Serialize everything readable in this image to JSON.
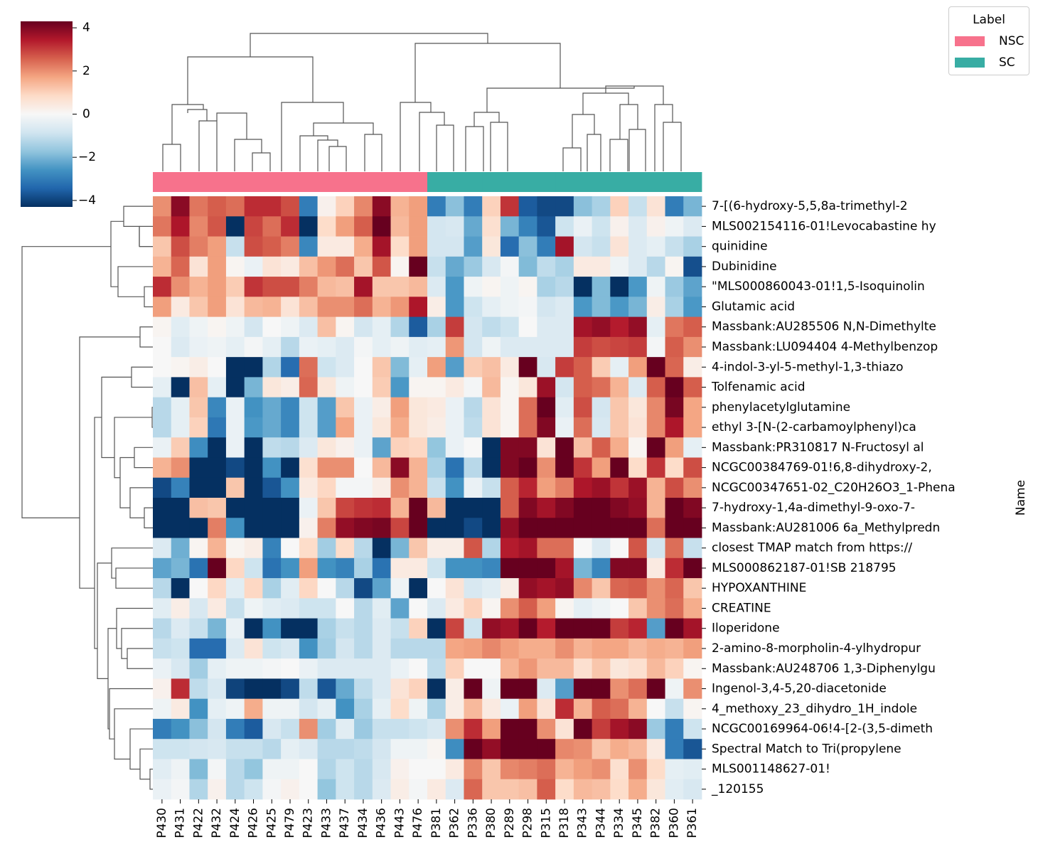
{
  "chart_data": {
    "type": "heatmap",
    "title": "",
    "xlabel": "",
    "ylabel": "Name",
    "colormap": "RdBu_r",
    "vlim": [
      -4.3,
      4.3
    ],
    "colorbar": {
      "ticks": [
        4,
        2,
        0,
        -2,
        -4
      ],
      "tick_labels": [
        "4",
        "2",
        "0",
        "−2",
        "−4"
      ]
    },
    "legend": {
      "title": "Label",
      "placement": "top-right",
      "items": [
        {
          "label": "NSC",
          "color": "#f7728c"
        },
        {
          "label": "SC",
          "color": "#38ada4"
        }
      ]
    },
    "columns": [
      "P430",
      "P431",
      "P422",
      "P432",
      "P424",
      "P426",
      "P425",
      "P479",
      "P423",
      "P433",
      "P437",
      "P434",
      "P436",
      "P443",
      "P476",
      "P381",
      "P362",
      "P336",
      "P380",
      "P289",
      "P298",
      "P315",
      "P318",
      "P343",
      "P344",
      "P334",
      "P345",
      "P382",
      "P360",
      "P361"
    ],
    "column_groups": [
      "NSC",
      "NSC",
      "NSC",
      "NSC",
      "NSC",
      "NSC",
      "NSC",
      "NSC",
      "NSC",
      "NSC",
      "NSC",
      "NSC",
      "NSC",
      "NSC",
      "NSC",
      "SC",
      "SC",
      "SC",
      "SC",
      "SC",
      "SC",
      "SC",
      "SC",
      "SC",
      "SC",
      "SC",
      "SC",
      "SC",
      "SC",
      "SC"
    ],
    "rows": [
      "7-[(6-hydroxy-5,5,8a-trimethyl-2",
      "MLS002154116-01!Levocabastine hy",
      "quinidine",
      "Dubinidine",
      "\"MLS000860043-01!1,5-Isoquinolin",
      "Glutamic acid",
      "Massbank:AU285506 N,N-Dimethylte",
      "Massbank:LU094404 4-Methylbenzop",
      "4-indol-3-yl-5-methyl-1,3-thiazo",
      "Tolfenamic acid",
      "phenylacetylglutamine",
      "ethyl 3-[N-(2-carbamoylphenyl)ca",
      "Massbank:PR310817 N-Fructosyl al",
      "NCGC00384769-01!6,8-dihydroxy-2,",
      "NCGC00347651-02_C20H26O3_1-Phena",
      "7-hydroxy-1,4a-dimethyl-9-oxo-7-",
      "Massbank:AU281006 6a_Methylpredn",
      "closest TMAP match from https://",
      "MLS000862187-01!SB 218795",
      "HYPOXANTHINE",
      "CREATINE",
      "Iloperidone",
      "2-amino-8-morpholin-4-ylhydropur",
      "Massbank:AU248706 1,3-Diphenylgu",
      "Ingenol-3,4-5,20-diacetonide",
      "4_methoxy_23_dihydro_1H_indole",
      "NCGC00169964-06!4-[2-(3,5-dimeth",
      "Spectral Match to Tri(propylene",
      "MLS001148627-01!",
      "_120155"
    ],
    "values": [
      [
        2.0,
        3.9,
        2.3,
        2.6,
        2.4,
        3.2,
        3.2,
        2.8,
        -3.0,
        0.2,
        1.0,
        2.1,
        3.9,
        1.5,
        1.8,
        -3.0,
        -1.8,
        -3.0,
        1.0,
        3.1,
        -3.6,
        -3.9,
        -3.9,
        -1.8,
        -1.4,
        1.0,
        -1.0,
        0.6,
        -3.0,
        -2.0
      ],
      [
        2.3,
        3.5,
        2.1,
        2.7,
        -4.3,
        2.9,
        2.4,
        3.2,
        -4.3,
        0.8,
        1.8,
        2.6,
        4.3,
        1.4,
        1.8,
        -0.8,
        -0.7,
        -2.2,
        0.7,
        -2.0,
        -2.9,
        -3.7,
        -0.9,
        -0.3,
        -0.9,
        0.2,
        -0.6,
        0.2,
        -0.2,
        -0.6
      ],
      [
        1.2,
        2.8,
        2.2,
        1.8,
        -1.0,
        2.8,
        2.6,
        2.2,
        -2.8,
        0.4,
        0.4,
        1.6,
        3.6,
        0.8,
        1.8,
        -0.8,
        -0.8,
        -2.4,
        0.5,
        -3.3,
        -1.8,
        -3.0,
        3.6,
        -0.8,
        -1.0,
        0.6,
        -0.6,
        -0.4,
        -1.0,
        -1.4
      ],
      [
        1.5,
        2.5,
        0.6,
        1.8,
        0.1,
        -0.3,
        0.6,
        0.4,
        1.3,
        1.9,
        2.4,
        1.2,
        2.7,
        0.1,
        4.3,
        -1.0,
        -2.2,
        -1.6,
        -0.7,
        -0.1,
        -1.9,
        -1.1,
        -1.4,
        0.4,
        0.4,
        -0.2,
        -0.6,
        -1.2,
        0.1,
        -3.8
      ],
      [
        3.2,
        2.0,
        1.5,
        1.8,
        1.1,
        3.1,
        2.8,
        2.8,
        2.2,
        1.4,
        1.3,
        3.6,
        1.2,
        1.2,
        1.4,
        -0.6,
        -2.5,
        -0.2,
        0.1,
        -0.2,
        0.1,
        -1.4,
        -1.2,
        -4.3,
        -1.9,
        -4.3,
        -2.5,
        -0.2,
        -1.6,
        -2.3
      ],
      [
        1.8,
        0.4,
        1.2,
        1.8,
        0.6,
        1.4,
        1.5,
        0.6,
        1.3,
        2.0,
        2.0,
        2.4,
        1.5,
        1.9,
        3.5,
        0.3,
        -2.5,
        -0.9,
        -0.4,
        -0.2,
        -0.1,
        -0.8,
        -0.6,
        -2.5,
        -1.9,
        -2.5,
        -2.0,
        0.3,
        -1.4,
        -2.5
      ],
      [
        0.1,
        -0.5,
        -0.2,
        0.1,
        -0.2,
        -0.8,
        0.0,
        -0.2,
        -0.6,
        1.3,
        0.1,
        -0.8,
        -0.4,
        -1.3,
        -3.6,
        -1.4,
        3.0,
        -0.8,
        -1.1,
        -0.9,
        0.0,
        -0.6,
        -0.6,
        3.6,
        3.8,
        3.4,
        3.8,
        -0.4,
        2.3,
        2.6
      ],
      [
        0.0,
        -0.6,
        -0.3,
        -0.2,
        -0.4,
        -0.1,
        -0.4,
        -1.2,
        -0.3,
        -0.4,
        -0.6,
        -0.1,
        -0.4,
        -0.2,
        -0.5,
        -0.4,
        1.9,
        -0.8,
        -0.2,
        -0.6,
        -0.6,
        -0.6,
        -0.6,
        3.0,
        2.8,
        2.9,
        3.0,
        -0.1,
        2.6,
        2.0
      ],
      [
        0.0,
        0.1,
        0.3,
        0.0,
        -4.3,
        -4.3,
        -1.3,
        -3.3,
        2.4,
        -0.9,
        -0.6,
        0.0,
        1.2,
        -1.9,
        -0.4,
        1.8,
        -2.4,
        1.1,
        1.3,
        0.4,
        4.3,
        -0.7,
        3.0,
        2.6,
        1.1,
        -0.4,
        1.8,
        4.3,
        2.5,
        0.3
      ],
      [
        -0.4,
        -4.3,
        1.3,
        -0.4,
        -4.3,
        -2.0,
        0.5,
        0.3,
        2.5,
        0.5,
        -0.2,
        0.0,
        1.1,
        -2.5,
        0.1,
        0.1,
        0.4,
        -0.1,
        1.4,
        0.1,
        0.5,
        3.7,
        -0.8,
        2.6,
        2.4,
        1.5,
        -0.6,
        2.6,
        4.3,
        2.6
      ],
      [
        -1.2,
        -0.4,
        1.2,
        -2.8,
        -0.3,
        -2.6,
        -2.2,
        -2.8,
        -0.9,
        -2.4,
        1.2,
        -0.3,
        0.3,
        1.8,
        0.5,
        0.4,
        -0.3,
        -1.2,
        0.6,
        0.1,
        2.4,
        4.3,
        -0.5,
        2.8,
        -0.8,
        1.2,
        0.5,
        2.1,
        4.1,
        1.7
      ],
      [
        -1.2,
        -0.4,
        1.0,
        -3.1,
        -0.3,
        -2.5,
        -2.2,
        -2.8,
        -0.9,
        -2.4,
        1.7,
        -0.3,
        0.5,
        1.6,
        0.5,
        0.3,
        -0.3,
        -1.1,
        0.6,
        0.1,
        2.4,
        4.0,
        -0.3,
        2.4,
        -0.7,
        1.2,
        0.6,
        2.1,
        3.5,
        1.7
      ],
      [
        -0.3,
        1.1,
        -2.7,
        -4.3,
        -0.3,
        -4.3,
        -1.1,
        -1.2,
        -0.6,
        0.5,
        0.2,
        -0.3,
        -2.3,
        1.0,
        0.9,
        -1.7,
        -0.3,
        0.0,
        -4.3,
        4.0,
        4.0,
        0.6,
        4.3,
        1.3,
        2.6,
        1.6,
        0.1,
        4.3,
        1.8,
        -0.4
      ],
      [
        1.5,
        2.0,
        -4.3,
        -4.3,
        -3.9,
        -4.3,
        -2.6,
        -4.3,
        0.7,
        2.0,
        2.0,
        0.0,
        1.4,
        3.9,
        1.5,
        -1.4,
        -3.2,
        -1.2,
        -4.3,
        4.0,
        4.3,
        2.0,
        4.3,
        3.1,
        1.8,
        4.3,
        0.8,
        3.1,
        0.8,
        2.8
      ],
      [
        -3.9,
        -2.9,
        -4.3,
        -4.3,
        1.2,
        -4.3,
        -3.7,
        -2.6,
        0.4,
        0.9,
        -0.1,
        -0.1,
        0.3,
        2.0,
        1.5,
        -1.0,
        -2.6,
        -0.3,
        -1.0,
        2.6,
        3.3,
        1.8,
        2.2,
        3.5,
        3.7,
        3.1,
        3.7,
        1.5,
        2.8,
        2.0
      ],
      [
        -4.3,
        -4.3,
        1.3,
        1.2,
        -4.3,
        -4.3,
        -4.3,
        -4.3,
        -0.3,
        1.2,
        2.9,
        3.1,
        3.2,
        1.5,
        4.3,
        1.4,
        -4.3,
        -4.3,
        -4.3,
        2.6,
        4.0,
        3.6,
        4.0,
        4.3,
        4.3,
        4.0,
        3.8,
        1.5,
        4.3,
        4.0
      ],
      [
        -4.3,
        -4.3,
        -4.3,
        2.2,
        -2.6,
        -4.3,
        -4.3,
        -4.3,
        0.2,
        2.2,
        3.8,
        4.0,
        4.1,
        2.9,
        4.3,
        -4.3,
        -4.3,
        -3.9,
        -4.3,
        3.8,
        4.3,
        4.3,
        4.3,
        4.3,
        4.3,
        4.3,
        4.3,
        2.4,
        4.3,
        4.3
      ],
      [
        -0.6,
        -2.1,
        0.1,
        1.5,
        0.1,
        0.3,
        -2.9,
        0.0,
        0.8,
        -1.5,
        0.8,
        -1.2,
        -4.3,
        -2.0,
        1.2,
        0.3,
        0.3,
        2.7,
        -1.3,
        3.4,
        3.6,
        2.4,
        2.4,
        0.0,
        -0.6,
        0.0,
        2.7,
        -0.8,
        2.4,
        -1.0
      ],
      [
        -2.3,
        -2.0,
        -3.2,
        4.3,
        0.9,
        -0.9,
        -3.2,
        -2.6,
        1.8,
        -2.6,
        -2.9,
        -1.4,
        -3.2,
        0.4,
        0.4,
        -0.9,
        -2.6,
        -2.6,
        -2.8,
        4.3,
        4.3,
        4.3,
        3.6,
        -2.0,
        -2.8,
        4.0,
        4.0,
        0.4,
        3.2,
        4.3
      ],
      [
        -1.2,
        -4.3,
        0.0,
        0.9,
        -0.5,
        0.9,
        -1.4,
        -0.5,
        0.9,
        0.0,
        -1.2,
        -3.9,
        -2.3,
        -0.2,
        -4.3,
        0.0,
        0.6,
        -0.7,
        -0.5,
        0.3,
        3.8,
        3.6,
        3.8,
        2.1,
        1.2,
        2.5,
        2.6,
        2.0,
        2.5,
        1.2
      ],
      [
        -0.5,
        0.3,
        -0.7,
        0.4,
        -1.0,
        -0.2,
        -0.5,
        -0.6,
        -0.9,
        -0.9,
        0.0,
        -1.2,
        -0.5,
        -2.3,
        0.0,
        -0.6,
        0.4,
        1.0,
        0.1,
        2.0,
        2.6,
        1.8,
        0.1,
        -0.4,
        -0.2,
        0.0,
        1.2,
        2.0,
        2.4,
        1.6
      ],
      [
        -1.2,
        -0.6,
        -1.0,
        -2.0,
        -0.3,
        -4.3,
        -2.6,
        -4.3,
        -4.3,
        -1.4,
        -1.0,
        -1.2,
        -0.6,
        -1.0,
        1.0,
        -4.3,
        2.9,
        -0.9,
        3.8,
        3.6,
        4.3,
        3.4,
        4.3,
        4.3,
        4.3,
        3.0,
        3.3,
        -2.4,
        4.3,
        3.6
      ],
      [
        -1.0,
        -0.9,
        -3.3,
        -3.3,
        -0.6,
        0.6,
        -0.9,
        -0.7,
        -2.6,
        -1.5,
        -0.8,
        -1.2,
        -0.6,
        -1.2,
        -1.2,
        -1.2,
        1.7,
        1.8,
        2.1,
        1.8,
        1.6,
        1.6,
        2.0,
        1.5,
        1.7,
        1.7,
        1.4,
        1.6,
        1.5,
        1.8
      ],
      [
        -0.3,
        -0.7,
        -1.5,
        -0.4,
        -0.2,
        -0.2,
        -0.1,
        0.0,
        -0.3,
        -0.6,
        -0.6,
        -0.6,
        -0.6,
        -0.3,
        0.0,
        -1.1,
        1.0,
        0.0,
        0.0,
        1.5,
        1.9,
        1.4,
        1.4,
        0.7,
        1.2,
        0.5,
        0.7,
        1.4,
        1.0,
        0.1
      ],
      [
        0.2,
        3.2,
        -1.1,
        -0.7,
        -4.0,
        -4.3,
        -4.3,
        -3.9,
        -1.1,
        -3.7,
        -2.2,
        -1.1,
        -0.6,
        0.6,
        1.0,
        -4.3,
        0.3,
        4.3,
        -0.2,
        4.3,
        4.3,
        -0.6,
        -2.4,
        4.3,
        4.3,
        2.0,
        2.4,
        4.3,
        -0.2,
        2.0
      ],
      [
        -0.2,
        0.4,
        -2.6,
        -0.4,
        -0.2,
        1.6,
        -0.2,
        -0.2,
        -0.8,
        -0.4,
        -2.6,
        -1.4,
        -0.4,
        0.8,
        -0.2,
        -1.4,
        0.3,
        1.4,
        0.4,
        -0.3,
        1.8,
        0.6,
        3.2,
        1.5,
        2.6,
        2.4,
        1.5,
        0.0,
        -1.0,
        0.1
      ],
      [
        -3.0,
        -2.6,
        -1.8,
        -0.8,
        -3.0,
        -3.6,
        -0.7,
        -1.0,
        2.0,
        -1.5,
        -0.5,
        -1.6,
        -1.0,
        -1.0,
        -0.9,
        -0.7,
        2.0,
        3.2,
        1.8,
        4.3,
        4.3,
        2.0,
        0.6,
        4.3,
        3.0,
        3.6,
        3.9,
        -1.6,
        -3.0,
        -0.9
      ],
      [
        -0.9,
        -0.9,
        -0.8,
        -0.7,
        -1.0,
        -1.0,
        -1.2,
        -0.4,
        -0.6,
        -1.2,
        -1.2,
        -1.1,
        -0.8,
        -0.2,
        -0.2,
        0.1,
        -2.7,
        4.3,
        3.8,
        4.3,
        4.3,
        4.3,
        2.1,
        2.0,
        1.2,
        1.6,
        1.4,
        0.4,
        -3.0,
        -3.7
      ],
      [
        -0.5,
        -0.2,
        -1.9,
        -0.1,
        -1.2,
        -1.7,
        -0.2,
        -0.2,
        0.0,
        -1.3,
        -0.9,
        -1.2,
        -0.7,
        0.2,
        0.0,
        0.0,
        0.4,
        2.1,
        1.2,
        2.1,
        2.2,
        2.4,
        1.5,
        1.8,
        2.0,
        0.7,
        2.0,
        0.8,
        -0.4,
        -0.5
      ],
      [
        -0.3,
        -0.1,
        -1.3,
        0.2,
        -1.2,
        -0.9,
        -0.1,
        0.2,
        0.0,
        -1.7,
        -0.9,
        -1.2,
        -0.6,
        0.3,
        -0.1,
        0.4,
        -0.6,
        2.5,
        1.2,
        1.2,
        1.3,
        2.6,
        0.8,
        1.4,
        1.3,
        0.8,
        1.6,
        0.5,
        -0.5,
        -0.7
      ]
    ]
  }
}
